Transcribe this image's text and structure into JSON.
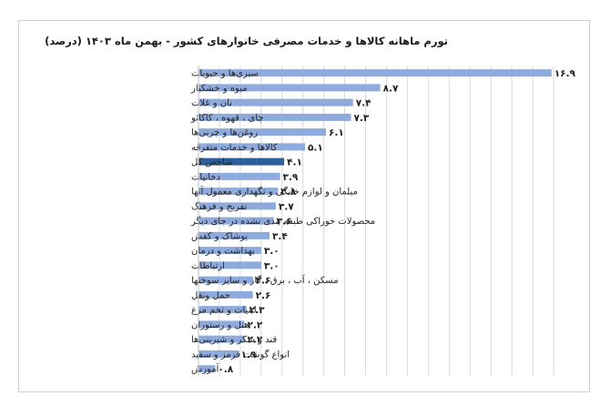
{
  "chart_data": {
    "type": "bar",
    "orientation": "horizontal",
    "title": "تورم ماهانه کالاها و خدمات مصرفی خانوارهای کشور - بهمن ماه ۱۴۰۳ (درصد)",
    "categories": [
      "سبزی‌ها و حبوبات",
      "میوه و خشکبار",
      "نان و غلات",
      "چای ، قهوه ، کاکائو",
      "روغن‌ها و چربی‌ها",
      "کالاها و خدمات متفرقه",
      "شاخص کل",
      "دخانیات",
      "مبلمان و لوازم خانگی و نگهداری معمول آنها",
      "تفریح و فرهنگ",
      "محصولات خوراکی طبقه بندی نشده در جای دیگر",
      "پوشاک و کفش",
      "بهداشت و درمان",
      "ارتباطات",
      "مسکن ، آب ، برق ، گاز و سایر سوختها",
      "حمل ونقل",
      "لبنیات و تخم مرغ",
      "هتل و رستوران",
      "قند و شکر و شیرینی‌ها",
      "انواع گوشت قرمز و سفید",
      "آموزش"
    ],
    "values": [
      16.9,
      8.7,
      7.4,
      7.3,
      6.1,
      5.1,
      4.1,
      3.9,
      3.8,
      3.7,
      3.6,
      3.4,
      3.0,
      3.0,
      2.6,
      2.6,
      2.3,
      2.2,
      2.2,
      1.9,
      0.8
    ],
    "value_labels": [
      "۱۶.۹",
      "۸.۷",
      "۷.۴",
      "۷.۳",
      "۶.۱",
      "۵.۱",
      "۴.۱",
      "۳.۹",
      "۳.۸",
      "۳.۷",
      "۳.۶",
      "۳.۴",
      "۳.۰",
      "۳.۰",
      "۲.۶",
      "۲.۶",
      "۲.۳",
      "۲.۲",
      "۲.۲",
      "۱.۹",
      "۰.۸"
    ],
    "highlight_index": 6,
    "xlim": [
      0,
      17
    ],
    "grid": true,
    "colors": {
      "bar": "#8faadc",
      "highlight": "#2e5f9a",
      "grid": "#d9d9d9"
    }
  }
}
